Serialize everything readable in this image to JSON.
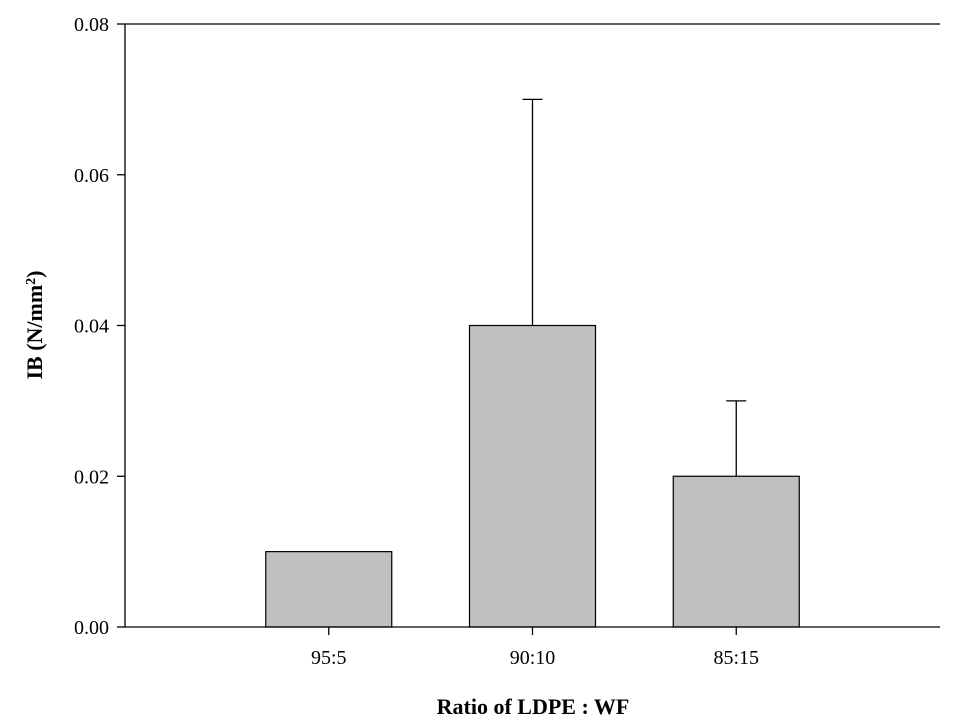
{
  "chart_data": {
    "type": "bar",
    "categories": [
      "95:5",
      "90:10",
      "85:15"
    ],
    "values": [
      0.01,
      0.04,
      0.02
    ],
    "error_plus": [
      0.0,
      0.03,
      0.01
    ],
    "ylim": [
      0,
      0.08
    ],
    "yticks": [
      "0.00",
      "0.02",
      "0.04",
      "0.06",
      "0.08"
    ],
    "ylabel": "IB (N/mm",
    "ylabel_sup": "2",
    "ylabel_end": ")",
    "xlabel": "Ratio of LDPE : WF",
    "bar_color": "#c0c0c0",
    "grid": false,
    "frame": "top-right-open-bottom-left-axes"
  }
}
